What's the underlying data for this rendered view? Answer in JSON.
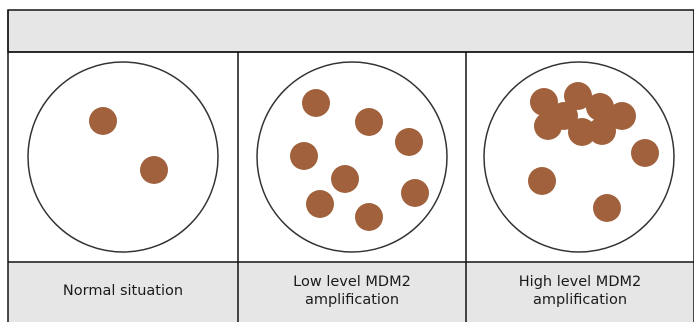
{
  "header": {
    "text": ""
  },
  "panels": [
    {
      "caption_lines": [
        "Normal situation"
      ],
      "signal_count": 2,
      "cluster": false
    },
    {
      "caption_lines": [
        "Low level MDM2",
        "amplification"
      ],
      "signal_count": 8,
      "cluster": false
    },
    {
      "caption_lines": [
        "High level MDM2",
        "amplification"
      ],
      "signal_count": 12,
      "cluster": true
    }
  ],
  "colors": {
    "header_fill": "#e6e6e6",
    "signal_fill": "#a0613c",
    "border": "#111111",
    "circle_stroke": "#333333",
    "caption_fill": "#e6e6e6"
  }
}
